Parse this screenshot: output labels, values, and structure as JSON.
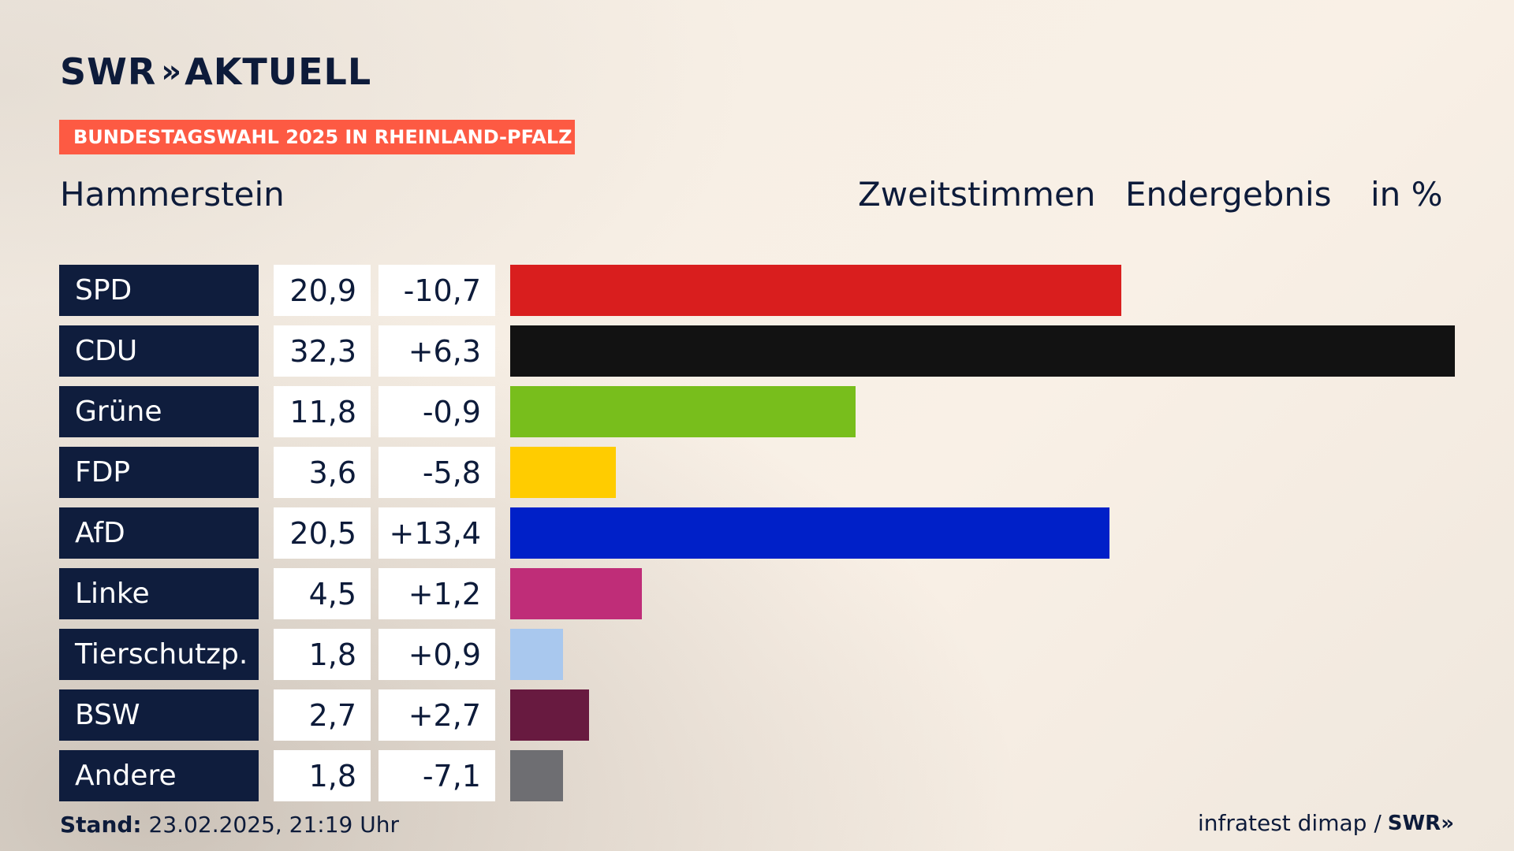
{
  "brand": {
    "name": "SWR",
    "chevrons": "»",
    "product": "AKTUELL"
  },
  "badge": "BUNDESTAGSWAHL 2025 IN RHEINLAND-PFALZ",
  "location": "Hammerstein",
  "header": {
    "vote_type": "Zweitstimmen",
    "status": "Endergebnis",
    "unit": "in %"
  },
  "chart_data": {
    "type": "bar",
    "orientation": "horizontal",
    "categories": [
      "SPD",
      "CDU",
      "Grüne",
      "FDP",
      "AfD",
      "Linke",
      "Tierschutzp.",
      "BSW",
      "Andere"
    ],
    "values": [
      20.9,
      32.3,
      11.8,
      3.6,
      20.5,
      4.5,
      1.8,
      2.7,
      1.8
    ],
    "value_labels": [
      "20,9",
      "32,3",
      "11,8",
      "3,6",
      "20,5",
      "4,5",
      "1,8",
      "2,7",
      "1,8"
    ],
    "change_labels": [
      "-10,7",
      "+6,3",
      "-0,9",
      "-5,8",
      "+13,4",
      "+1,2",
      "+0,9",
      "+2,7",
      "-7,1"
    ],
    "colors": [
      "#d91e1e",
      "#121212",
      "#78be1c",
      "#ffcc00",
      "#0020c8",
      "#bf2d78",
      "#a9c8ee",
      "#681a40",
      "#6e6e72"
    ],
    "xlim": [
      0,
      32.3
    ]
  },
  "footer": {
    "stand_label": "Stand:",
    "stand_value": "23.02.2025, 21:19 Uhr",
    "source": "infratest dimap /",
    "source_logo": "SWR»"
  }
}
